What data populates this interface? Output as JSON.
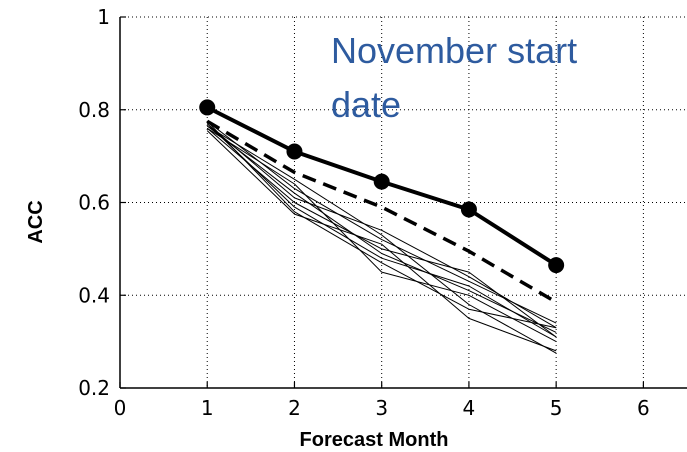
{
  "chart_data": {
    "type": "line",
    "title": "",
    "xlabel": "Forecast Month",
    "ylabel": "ACC",
    "xlim": [
      0,
      6.5
    ],
    "ylim": [
      0.2,
      1.0
    ],
    "xticks": [
      0,
      1,
      2,
      3,
      4,
      5,
      6
    ],
    "xtick_labels": [
      "0",
      "1",
      "2",
      "3",
      "4",
      "5",
      "6"
    ],
    "yticks": [
      0.2,
      0.4,
      0.6,
      0.8,
      1.0
    ],
    "ytick_labels": [
      "0.2",
      "0.4",
      "0.6",
      "0.8",
      "1"
    ],
    "grid": true,
    "annotation": [
      "November start",
      "date"
    ],
    "colors": {
      "series": "#000000",
      "annotation": "#2e5b9f",
      "grid": "#000000"
    },
    "x": [
      1,
      2,
      3,
      4,
      5
    ],
    "series": [
      {
        "style": "solid-bold-markers",
        "values": [
          0.805,
          0.71,
          0.645,
          0.585,
          0.465
        ]
      },
      {
        "style": "dashed-bold",
        "values": [
          0.775,
          0.665,
          0.59,
          0.495,
          0.385
        ]
      },
      {
        "style": "thin",
        "values": [
          0.775,
          0.63,
          0.52,
          0.43,
          0.34
        ]
      },
      {
        "style": "thin",
        "values": [
          0.77,
          0.61,
          0.54,
          0.44,
          0.33
        ]
      },
      {
        "style": "thin",
        "values": [
          0.765,
          0.62,
          0.49,
          0.41,
          0.32
        ]
      },
      {
        "style": "thin",
        "values": [
          0.76,
          0.6,
          0.5,
          0.45,
          0.31
        ]
      },
      {
        "style": "thin",
        "values": [
          0.775,
          0.58,
          0.47,
          0.37,
          0.33
        ]
      },
      {
        "style": "thin",
        "values": [
          0.76,
          0.64,
          0.45,
          0.4,
          0.3
        ]
      },
      {
        "style": "thin",
        "values": [
          0.755,
          0.575,
          0.51,
          0.35,
          0.28
        ]
      },
      {
        "style": "thin",
        "values": [
          0.77,
          0.59,
          0.48,
          0.42,
          0.31
        ]
      },
      {
        "style": "thin",
        "values": [
          0.765,
          0.65,
          0.53,
          0.38,
          0.275
        ]
      }
    ]
  }
}
